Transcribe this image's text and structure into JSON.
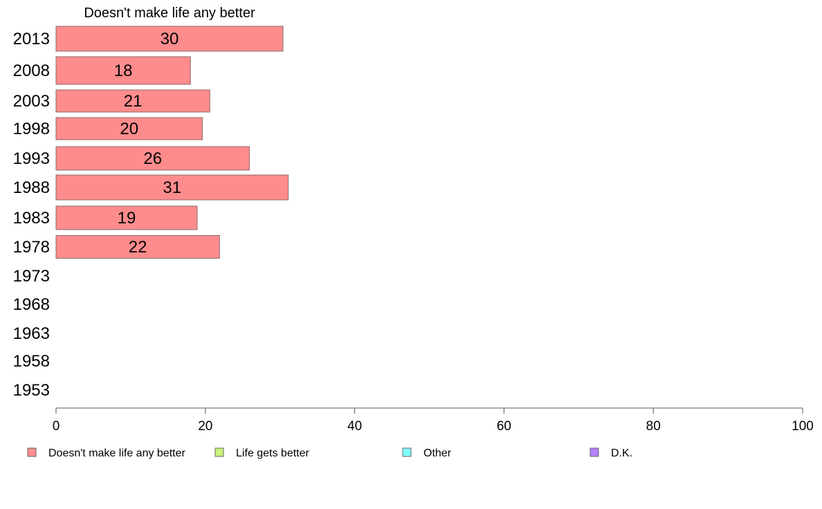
{
  "chart_data": {
    "type": "bar",
    "orientation": "horizontal",
    "title": "Doesn't make life any better",
    "categories": [
      "2013",
      "2008",
      "2003",
      "1998",
      "1993",
      "1988",
      "1983",
      "1978",
      "1973",
      "1968",
      "1963",
      "1958",
      "1953"
    ],
    "series": [
      {
        "name": "Doesn't make life any better",
        "values": [
          30.4,
          18.0,
          20.6,
          19.6,
          25.9,
          31.1,
          18.9,
          21.9,
          null,
          null,
          null,
          null,
          null
        ],
        "labels": [
          "30",
          "18",
          "21",
          "20",
          "26",
          "31",
          "19",
          "22",
          "",
          "",
          "",
          "",
          ""
        ]
      },
      {
        "name": "Life gets better",
        "values": [
          null,
          null,
          null,
          null,
          null,
          null,
          null,
          null,
          null,
          null,
          null,
          null,
          null
        ]
      },
      {
        "name": "Other",
        "values": [
          null,
          null,
          null,
          null,
          null,
          null,
          null,
          null,
          null,
          null,
          null,
          null,
          null
        ]
      },
      {
        "name": "D.K.",
        "values": [
          null,
          null,
          null,
          null,
          null,
          null,
          null,
          null,
          null,
          null,
          null,
          null,
          null
        ]
      }
    ],
    "xlim": [
      0,
      100
    ],
    "xticks": [
      0,
      20,
      40,
      60,
      80,
      100
    ],
    "grid": false,
    "legend_position": "bottom",
    "colors": {
      "Doesn't make life any better": "#ff8c8c",
      "Life gets better": "#c8f57a",
      "Other": "#80ffff",
      "D.K.": "#b380ff"
    }
  }
}
